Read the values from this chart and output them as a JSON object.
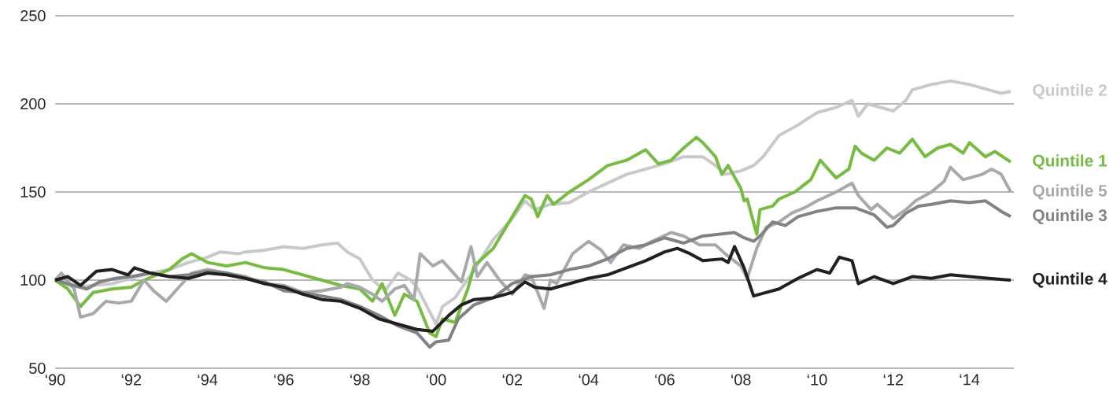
{
  "chart_data": {
    "type": "line",
    "grid": "y",
    "xlim": [
      "1990-01",
      "2015-03"
    ],
    "ylim": [
      50,
      250
    ],
    "xticks": [
      {
        "value": "1990",
        "label": "‘90"
      },
      {
        "value": "1992",
        "label": "‘92"
      },
      {
        "value": "1994",
        "label": "‘94"
      },
      {
        "value": "1996",
        "label": "‘96"
      },
      {
        "value": "1998",
        "label": "‘98"
      },
      {
        "value": "2000",
        "label": "‘00"
      },
      {
        "value": "2002",
        "label": "‘02"
      },
      {
        "value": "2004",
        "label": "‘04"
      },
      {
        "value": "2006",
        "label": "‘06"
      },
      {
        "value": "2008",
        "label": "‘08"
      },
      {
        "value": "2010",
        "label": "‘10"
      },
      {
        "value": "2012",
        "label": "‘12"
      },
      {
        "value": "2014",
        "label": "‘14"
      }
    ],
    "yticks": [
      50,
      100,
      150,
      200,
      250
    ],
    "series": [
      {
        "name": "Quintile 2",
        "color": "#c8c9cb",
        "x": [
          "1990-01",
          "1990-07",
          "1991-01",
          "1991-07",
          "1992-01",
          "1992-07",
          "1993-01",
          "1993-07",
          "1994-01",
          "1994-05",
          "1994-11",
          "1995-01",
          "1995-07",
          "1996-01",
          "1996-07",
          "1997-01",
          "1997-06",
          "1997-09",
          "1998-01",
          "1998-05",
          "1998-09",
          "1999-01",
          "1999-05",
          "1999-07",
          "1999-11",
          "2000-01",
          "2000-03",
          "2000-07",
          "2001-01",
          "2001-07",
          "2002-01",
          "2002-05",
          "2002-08",
          "2003-01",
          "2003-07",
          "2004-01",
          "2004-07",
          "2005-01",
          "2005-07",
          "2006-01",
          "2006-07",
          "2007-01",
          "2007-05",
          "2007-08",
          "2008-01",
          "2008-05",
          "2008-08",
          "2009-01",
          "2009-07",
          "2010-01",
          "2010-07",
          "2010-12",
          "2011-02",
          "2011-05",
          "2011-09",
          "2012-01",
          "2012-05",
          "2012-07",
          "2013-01",
          "2013-07",
          "2014-01",
          "2014-07",
          "2014-11",
          "2015-02"
        ],
        "values": [
          100,
          96,
          97,
          98,
          101,
          104,
          106,
          110,
          113,
          116,
          115,
          116,
          117,
          119,
          118,
          120,
          121,
          116,
          112,
          100,
          94,
          104,
          100,
          96,
          82,
          75,
          85,
          90,
          106,
          123,
          135,
          145,
          140,
          143,
          144,
          150,
          155,
          160,
          163,
          166,
          170,
          170,
          165,
          160,
          162,
          165,
          170,
          182,
          188,
          195,
          198,
          202,
          193,
          200,
          198,
          196,
          202,
          208,
          211,
          213,
          211,
          208,
          206,
          207
        ]
      },
      {
        "name": "Quintile 1",
        "color": "#76bc43",
        "x": [
          "1990-01",
          "1990-05",
          "1990-09",
          "1991-01",
          "1991-07",
          "1992-01",
          "1992-05",
          "1992-09",
          "1993-01",
          "1993-05",
          "1993-08",
          "1994-01",
          "1994-07",
          "1995-01",
          "1995-07",
          "1996-01",
          "1996-07",
          "1997-01",
          "1997-07",
          "1998-01",
          "1998-05",
          "1998-08",
          "1998-12",
          "1999-03",
          "1999-07",
          "1999-11",
          "2000-01",
          "2000-03",
          "2000-07",
          "2000-11",
          "2001-01",
          "2001-07",
          "2002-01",
          "2002-05",
          "2002-07",
          "2002-09",
          "2002-12",
          "2003-02",
          "2003-07",
          "2004-01",
          "2004-07",
          "2005-01",
          "2005-07",
          "2005-11",
          "2006-03",
          "2006-07",
          "2006-11",
          "2007-01",
          "2007-05",
          "2007-07",
          "2007-09",
          "2008-01",
          "2008-02",
          "2008-03",
          "2008-06",
          "2008-07",
          "2008-11",
          "2009-01",
          "2009-06",
          "2009-11",
          "2010-02",
          "2010-07",
          "2010-11",
          "2011-01",
          "2011-03",
          "2011-07",
          "2011-11",
          "2012-03",
          "2012-07",
          "2012-11",
          "2013-03",
          "2013-07",
          "2013-11",
          "2014-01",
          "2014-06",
          "2014-09",
          "2015-02"
        ],
        "values": [
          100,
          95,
          85,
          93,
          95,
          96,
          100,
          103,
          106,
          112,
          115,
          110,
          108,
          110,
          107,
          106,
          103,
          100,
          97,
          95,
          88,
          98,
          80,
          92,
          88,
          70,
          68,
          78,
          76,
          95,
          108,
          118,
          136,
          148,
          146,
          136,
          148,
          143,
          150,
          157,
          165,
          168,
          174,
          166,
          168,
          175,
          181,
          178,
          170,
          160,
          165,
          152,
          145,
          146,
          126,
          140,
          142,
          146,
          150,
          157,
          168,
          158,
          163,
          176,
          172,
          168,
          175,
          172,
          180,
          170,
          175,
          177,
          172,
          178,
          170,
          173,
          167
        ]
      },
      {
        "name": "Quintile 5",
        "color": "#a7a9ac",
        "x": [
          "1990-01",
          "1990-03",
          "1990-07",
          "1990-09",
          "1991-01",
          "1991-05",
          "1991-09",
          "1992-01",
          "1992-05",
          "1992-08",
          "1992-12",
          "1993-05",
          "1993-08",
          "1994-01",
          "1994-07",
          "1995-01",
          "1995-07",
          "1996-01",
          "1996-07",
          "1997-01",
          "1997-07",
          "1997-09",
          "1998-01",
          "1998-05",
          "1998-08",
          "1998-12",
          "1999-03",
          "1999-06",
          "1999-08",
          "1999-12",
          "2000-03",
          "2000-06",
          "2000-09",
          "2000-12",
          "2001-02",
          "2001-05",
          "2001-09",
          "2002-01",
          "2002-05",
          "2002-07",
          "2002-11",
          "2003-01",
          "2003-03",
          "2003-08",
          "2004-01",
          "2004-05",
          "2004-08",
          "2004-12",
          "2005-05",
          "2005-09",
          "2006-03",
          "2006-07",
          "2006-12",
          "2007-05",
          "2007-08",
          "2008-01",
          "2008-03",
          "2008-06",
          "2008-09",
          "2009-01",
          "2009-05",
          "2009-09",
          "2010-01",
          "2010-07",
          "2010-12",
          "2011-02",
          "2011-06",
          "2011-08",
          "2012-01",
          "2012-05",
          "2012-08",
          "2013-01",
          "2013-05",
          "2013-07",
          "2013-11",
          "2014-05",
          "2014-08",
          "2014-11",
          "2015-02"
        ],
        "values": [
          100,
          104,
          95,
          79,
          81,
          88,
          87,
          88,
          100,
          94,
          88,
          98,
          104,
          106,
          104,
          102,
          98,
          97,
          93,
          94,
          96,
          98,
          96,
          92,
          88,
          95,
          97,
          89,
          115,
          108,
          111,
          105,
          99,
          119,
          102,
          110,
          100,
          92,
          103,
          102,
          84,
          100,
          98,
          115,
          122,
          117,
          110,
          120,
          118,
          122,
          127,
          125,
          120,
          120,
          115,
          108,
          101,
          118,
          130,
          133,
          138,
          141,
          145,
          150,
          155,
          148,
          140,
          143,
          135,
          140,
          145,
          150,
          156,
          164,
          157,
          160,
          163,
          160,
          150
        ]
      },
      {
        "name": "Quintile 3",
        "color": "#808285",
        "x": [
          "1990-01",
          "1990-07",
          "1990-11",
          "1991-03",
          "1991-08",
          "1992-01",
          "1992-07",
          "1993-01",
          "1993-07",
          "1994-01",
          "1994-07",
          "1995-01",
          "1995-07",
          "1996-01",
          "1996-07",
          "1997-01",
          "1997-07",
          "1998-01",
          "1998-07",
          "1999-01",
          "1999-07",
          "1999-11",
          "2000-01",
          "2000-05",
          "2000-08",
          "2001-01",
          "2001-07",
          "2002-01",
          "2002-07",
          "2003-01",
          "2003-07",
          "2004-01",
          "2004-07",
          "2005-01",
          "2005-07",
          "2006-01",
          "2006-07",
          "2007-01",
          "2007-06",
          "2007-11",
          "2008-02",
          "2008-05",
          "2008-07",
          "2008-11",
          "2009-03",
          "2009-07",
          "2010-01",
          "2010-07",
          "2011-01",
          "2011-07",
          "2011-11",
          "2012-01",
          "2012-05",
          "2012-09",
          "2013-01",
          "2013-07",
          "2014-01",
          "2014-06",
          "2014-11",
          "2015-02"
        ],
        "values": [
          100,
          97,
          95,
          99,
          101,
          102,
          104,
          102,
          103,
          105,
          104,
          101,
          99,
          94,
          93,
          91,
          89,
          85,
          80,
          74,
          70,
          62,
          65,
          66,
          78,
          86,
          90,
          98,
          102,
          103,
          106,
          108,
          112,
          118,
          120,
          124,
          121,
          125,
          126,
          127,
          124,
          122,
          125,
          133,
          131,
          136,
          139,
          141,
          141,
          137,
          130,
          131,
          138,
          142,
          143,
          145,
          144,
          145,
          139,
          136
        ]
      },
      {
        "name": "Quintile 4",
        "color": "#231f20",
        "x": [
          "1990-01",
          "1990-05",
          "1990-09",
          "1991-02",
          "1991-07",
          "1991-12",
          "1992-02",
          "1992-07",
          "1993-01",
          "1993-07",
          "1994-01",
          "1994-07",
          "1995-01",
          "1995-07",
          "1996-01",
          "1996-07",
          "1997-01",
          "1997-07",
          "1998-01",
          "1998-07",
          "1999-01",
          "1999-07",
          "1999-12",
          "2000-05",
          "2000-09",
          "2001-01",
          "2001-07",
          "2002-01",
          "2002-05",
          "2002-08",
          "2003-01",
          "2003-07",
          "2004-01",
          "2004-07",
          "2005-01",
          "2005-07",
          "2006-01",
          "2006-05",
          "2006-09",
          "2007-01",
          "2007-07",
          "2007-09",
          "2007-11",
          "2008-02",
          "2008-05",
          "2008-07",
          "2009-01",
          "2009-07",
          "2010-01",
          "2010-05",
          "2010-08",
          "2010-12",
          "2011-02",
          "2011-07",
          "2012-01",
          "2012-07",
          "2013-01",
          "2013-07",
          "2014-01",
          "2014-07",
          "2015-02"
        ],
        "values": [
          100,
          102,
          97,
          105,
          106,
          103,
          107,
          104,
          102,
          101,
          104,
          103,
          101,
          98,
          96,
          92,
          89,
          88,
          84,
          78,
          75,
          72,
          71,
          80,
          86,
          89,
          90,
          93,
          99,
          96,
          95,
          98,
          101,
          103,
          107,
          111,
          116,
          118,
          115,
          111,
          112,
          110,
          119,
          107,
          91,
          92,
          95,
          101,
          106,
          104,
          113,
          111,
          98,
          102,
          98,
          102,
          101,
          103,
          102,
          101,
          100
        ]
      }
    ]
  }
}
